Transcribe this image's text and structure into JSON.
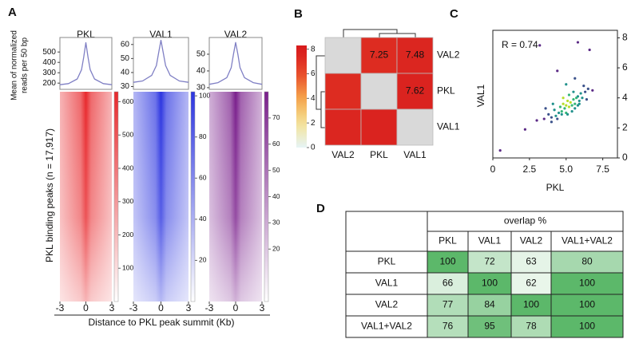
{
  "panel_labels": [
    "A",
    "B",
    "C",
    "D"
  ],
  "chart_data": [
    {
      "type": "profile-heatmap",
      "ylabel": [
        "Mean of normalized",
        "reads per 50 bp"
      ],
      "heatmap_ylabel": "PKL binding peaks (n = 17,917)",
      "xlabel": "Distance to PKL peak summit (Kb)",
      "xlim": [
        -3,
        3
      ],
      "xticks": [
        -3,
        0,
        3
      ],
      "x": [
        -3,
        -2,
        -1,
        -0.5,
        -0.25,
        0,
        0.25,
        0.5,
        1,
        2,
        3
      ],
      "tracks": [
        {
          "name": "PKL",
          "color": "#e8282c",
          "line_color": "#7f7fc4",
          "ylim": [
            140,
            640
          ],
          "yticks": [
            200,
            300,
            400,
            500
          ],
          "values": [
            185,
            195,
            240,
            330,
            450,
            590,
            450,
            330,
            240,
            195,
            185
          ],
          "colorbar_lim": [
            0,
            630
          ],
          "colorbar_ticks": [
            100,
            200,
            300,
            400,
            500,
            600
          ]
        },
        {
          "name": "VAL1",
          "color": "#2c35e0",
          "line_color": "#7f7fc4",
          "ylim": [
            28,
            65
          ],
          "yticks": [
            30,
            40,
            50,
            60
          ],
          "values": [
            33,
            34,
            38,
            45,
            54,
            63,
            54,
            45,
            38,
            34,
            33
          ],
          "colorbar_lim": [
            0,
            102
          ],
          "colorbar_ticks": [
            20,
            40,
            60,
            80,
            100
          ]
        },
        {
          "name": "VAL2",
          "color": "#7a1f8c",
          "line_color": "#7f7fc4",
          "ylim": [
            29,
            60
          ],
          "yticks": [
            30,
            40,
            50
          ],
          "values": [
            32,
            33,
            36,
            42,
            50,
            57,
            50,
            42,
            36,
            33,
            32
          ],
          "colorbar_lim": [
            0,
            80
          ],
          "colorbar_ticks": [
            20,
            30,
            40,
            50,
            60,
            70
          ]
        }
      ]
    },
    {
      "type": "correlation-matrix",
      "rows": [
        "VAL2",
        "PKL",
        "VAL1"
      ],
      "columns": [
        "VAL2",
        "PKL",
        "VAL1"
      ],
      "values": [
        [
          null,
          7.25,
          7.48
        ],
        [
          7.25,
          null,
          7.62
        ],
        [
          7.48,
          7.62,
          null
        ]
      ],
      "colorbar_lim": [
        0,
        8.3
      ],
      "colorbar_ticks": [
        0,
        2,
        4,
        6,
        8
      ]
    },
    {
      "type": "scatter",
      "annotation": "R = 0.74",
      "xlabel": "PKL",
      "ylabel": "VAL1",
      "xlim": [
        0,
        8.5
      ],
      "xticks": [
        0,
        2.5,
        {
          "value": 5,
          "label": "5.0"
        },
        7.5
      ],
      "ylim": [
        0,
        8.5
      ],
      "yticks": [
        0,
        2,
        4,
        6,
        8
      ],
      "x": [
        5.8,
        6.6,
        3.2,
        4.4,
        5.0,
        5.6,
        0.5,
        2.2,
        3.0,
        3.5,
        3.8,
        4.0,
        4.2,
        4.3,
        4.5,
        4.6,
        4.7,
        4.8,
        4.9,
        5.0,
        5.1,
        5.2,
        5.3,
        5.4,
        5.5,
        5.6,
        5.7,
        5.8,
        5.9,
        6.0,
        6.1,
        6.3,
        6.5,
        6.8,
        4.1,
        4.4,
        4.7,
        5.0,
        5.2,
        5.4,
        5.6,
        5.8,
        6.2,
        3.6,
        4.8,
        5.1,
        5.5,
        5.9,
        6.4,
        4.0
      ],
      "y": [
        7.7,
        7.2,
        7.5,
        5.8,
        4.9,
        5.3,
        0.5,
        1.9,
        2.5,
        2.6,
        2.9,
        2.7,
        3.2,
        2.8,
        3.0,
        3.4,
        3.1,
        3.6,
        3.3,
        3.5,
        3.8,
        3.4,
        3.7,
        3.5,
        3.9,
        3.6,
        4.0,
        4.1,
        3.8,
        4.3,
        4.0,
        4.4,
        4.6,
        4.5,
        3.6,
        2.6,
        2.9,
        3.0,
        4.2,
        3.1,
        3.3,
        3.5,
        4.8,
        3.3,
        4.0,
        2.9,
        4.4,
        3.6,
        3.9,
        2.4
      ]
    }
  ],
  "table": {
    "header": "overlap  %",
    "columns": [
      "PKL",
      "VAL1",
      "VAL2",
      "VAL1+VAL2"
    ],
    "rows": [
      {
        "label": "PKL",
        "values": [
          100,
          72,
          63,
          80
        ]
      },
      {
        "label": "VAL1",
        "values": [
          66,
          100,
          62,
          100
        ]
      },
      {
        "label": "VAL2",
        "values": [
          77,
          84,
          100,
          100
        ]
      },
      {
        "label": "VAL1+VAL2",
        "values": [
          76,
          95,
          78,
          100
        ]
      }
    ]
  }
}
